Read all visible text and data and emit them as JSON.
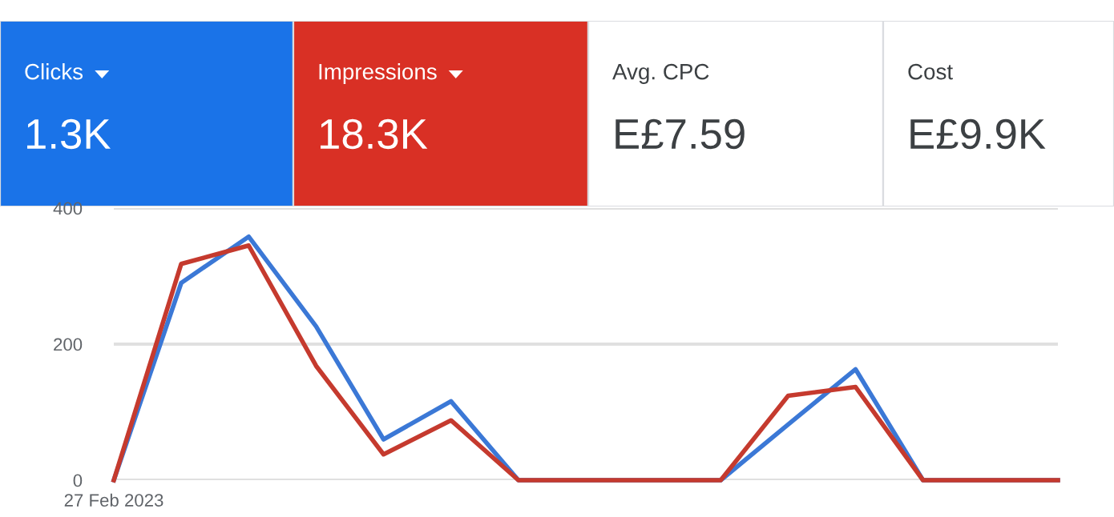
{
  "chart_data": [
    {
      "type": "other",
      "categories": [
        "Clicks",
        "Impressions",
        "Avg. CPC",
        "Cost"
      ],
      "value_labels": [
        "1.3K",
        "18.3K",
        "E£7.59",
        "E£9.9K"
      ],
      "colors": [
        "#1a73e8",
        "#d93025",
        "#ffffff",
        "#ffffff"
      ]
    },
    {
      "type": "line",
      "categories": [
        "27 Feb 2023",
        null,
        null,
        null,
        null,
        null,
        null,
        null,
        null,
        null,
        null,
        null,
        null,
        null,
        null
      ],
      "series": [
        {
          "color": "#3b78d6",
          "values": [
            0,
            290,
            358,
            226,
            60,
            116,
            0,
            0,
            0,
            0,
            82,
            163,
            0,
            0,
            0
          ]
        },
        {
          "color": "#c53a2e",
          "values": [
            0,
            318,
            345,
            168,
            38,
            88,
            0,
            0,
            0,
            0,
            124,
            137,
            0,
            0,
            0
          ]
        }
      ],
      "ylim": [
        0,
        400
      ],
      "yticks": [
        0,
        200,
        400
      ],
      "grid": "y",
      "marker": "none",
      "line_style": "solid"
    }
  ]
}
